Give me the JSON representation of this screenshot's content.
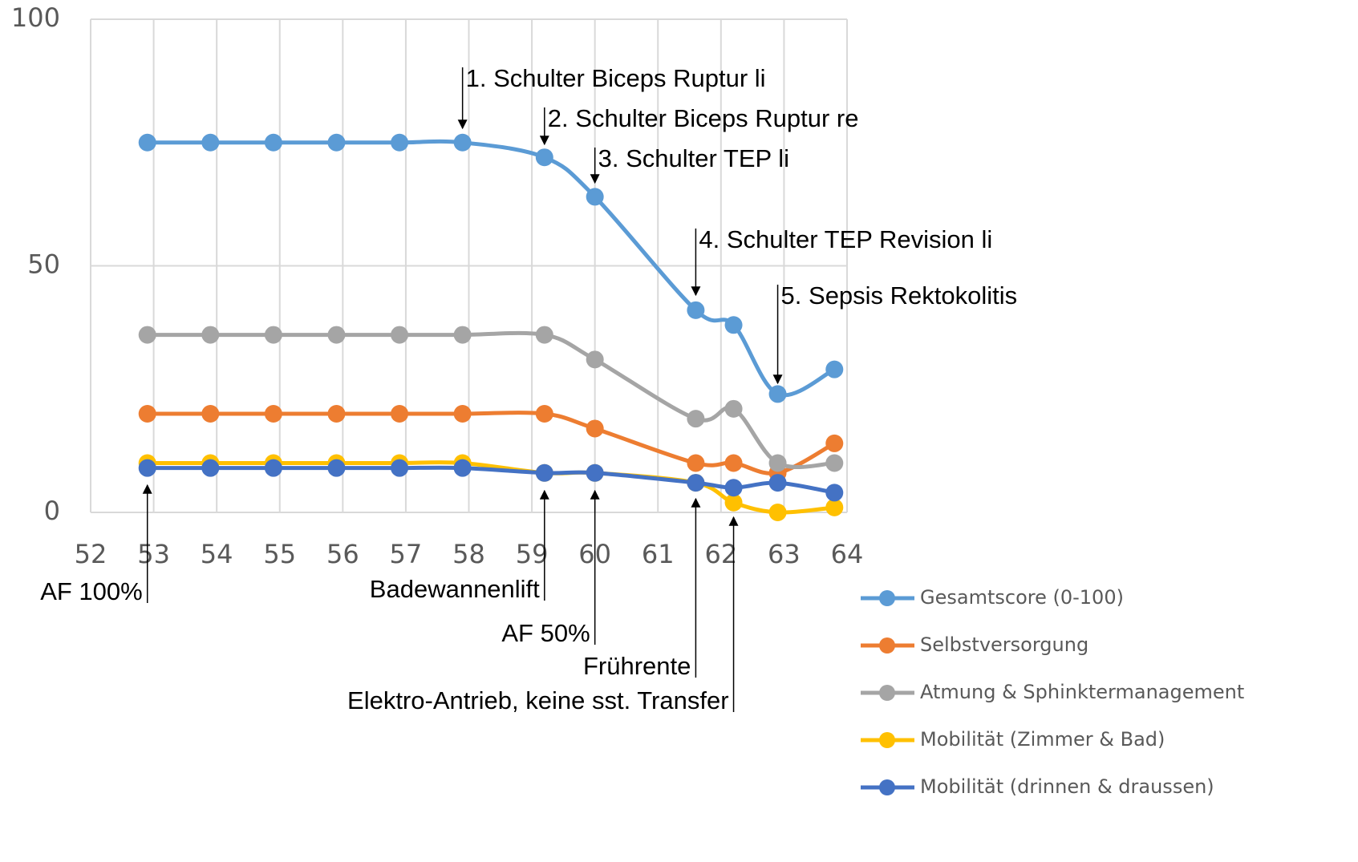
{
  "chart_data": {
    "type": "line",
    "x": [
      52.9,
      53.9,
      54.9,
      55.9,
      56.9,
      57.9,
      59.2,
      60.0,
      61.6,
      62.2,
      62.9,
      63.8
    ],
    "series": [
      {
        "name": "Gesamtscore (0-100)",
        "color": "#5b9bd5",
        "values": [
          75,
          75,
          75,
          75,
          75,
          75,
          72,
          64,
          41,
          38,
          24,
          29
        ]
      },
      {
        "name": "Selbstversorgung",
        "color": "#ed7d31",
        "values": [
          20,
          20,
          20,
          20,
          20,
          20,
          20,
          17,
          10,
          10,
          8,
          14
        ]
      },
      {
        "name": "Atmung & Sphinktermanagement",
        "color": "#a5a5a5",
        "values": [
          36,
          36,
          36,
          36,
          36,
          36,
          36,
          31,
          19,
          21,
          10,
          10
        ]
      },
      {
        "name": "Mobilität (Zimmer & Bad)",
        "color": "#ffc000",
        "values": [
          10,
          10,
          10,
          10,
          10,
          10,
          8,
          8,
          6,
          2,
          0,
          1
        ]
      },
      {
        "name": "Mobilität (drinnen & draussen)",
        "color": "#4472c4",
        "values": [
          9,
          9,
          9,
          9,
          9,
          9,
          8,
          8,
          6,
          5,
          6,
          4
        ]
      }
    ],
    "xlim": [
      52,
      64
    ],
    "xticks": [
      52,
      53,
      54,
      55,
      56,
      57,
      58,
      59,
      60,
      61,
      62,
      63,
      64
    ],
    "ylim": [
      0,
      100
    ],
    "yticks": [
      0,
      50,
      100
    ],
    "grid": true,
    "legend": "lower right",
    "annotations_top": [
      {
        "text": "1. Schulter Biceps Ruptur li",
        "x": 57.9
      },
      {
        "text": "2. Schulter Biceps Ruptur re",
        "x": 59.2
      },
      {
        "text": "3. Schulter TEP li",
        "x": 60.0
      },
      {
        "text": "4. Schulter TEP Revision li",
        "x": 61.6
      },
      {
        "text": "5. Sepsis Rektokolitis",
        "x": 62.9
      }
    ],
    "annotations_bottom": [
      {
        "text": "AF 100%",
        "x": 52.9
      },
      {
        "text": "Badewannenlift",
        "x": 59.2
      },
      {
        "text": "AF 50%",
        "x": 60.0
      },
      {
        "text": "Frührente",
        "x": 61.6
      },
      {
        "text": "Elektro-Antrieb, keine sst. Transfer",
        "x": 62.2
      }
    ]
  }
}
